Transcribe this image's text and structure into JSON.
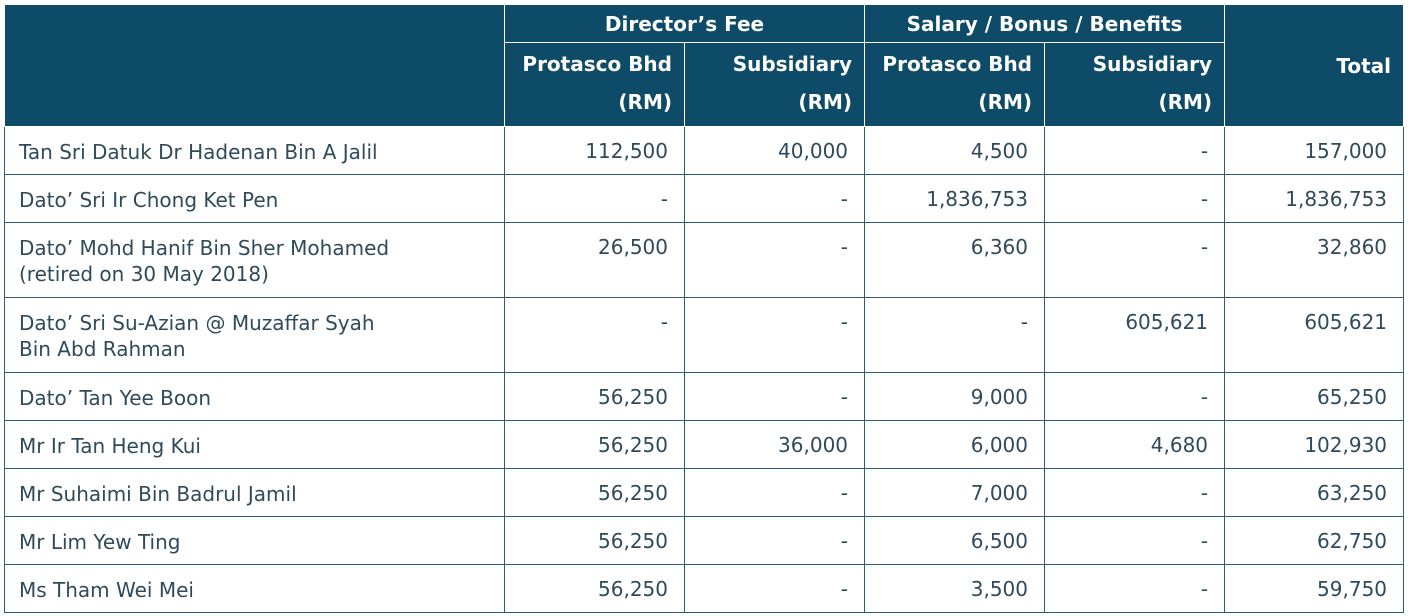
{
  "header": {
    "groups": [
      "Director’s Fee",
      "Salary / Bonus / Benefits"
    ],
    "subcolumns": [
      {
        "line1": "Protasco Bhd",
        "line2": "(RM)"
      },
      {
        "line1": "Subsidiary",
        "line2": "(RM)"
      },
      {
        "line1": "Protasco Bhd",
        "line2": "(RM)"
      },
      {
        "line1": "Subsidiary",
        "line2": "(RM)"
      }
    ],
    "total": "Total"
  },
  "rows": [
    {
      "name": [
        "Tan Sri Datuk Dr Hadenan Bin A Jalil",
        ""
      ],
      "v": [
        "112,500",
        "40,000",
        "4,500",
        "-",
        "157,000"
      ]
    },
    {
      "name": [
        "Dato’ Sri Ir Chong Ket Pen",
        ""
      ],
      "v": [
        "-",
        "-",
        "1,836,753",
        "-",
        "1,836,753"
      ]
    },
    {
      "name": [
        "Dato’ Mohd Hanif Bin Sher Mohamed",
        "(retired on 30 May 2018)"
      ],
      "v": [
        "26,500",
        "-",
        "6,360",
        "-",
        "32,860"
      ]
    },
    {
      "name": [
        "Dato’ Sri Su-Azian @ Muzaffar Syah",
        "Bin Abd Rahman"
      ],
      "v": [
        "-",
        "-",
        "-",
        "605,621",
        "605,621"
      ]
    },
    {
      "name": [
        "Dato’ Tan Yee Boon",
        ""
      ],
      "v": [
        "56,250",
        "-",
        "9,000",
        "-",
        "65,250"
      ]
    },
    {
      "name": [
        "Mr Ir Tan Heng Kui",
        ""
      ],
      "v": [
        "56,250",
        "36,000",
        "6,000",
        "4,680",
        "102,930"
      ]
    },
    {
      "name": [
        "Mr Suhaimi Bin Badrul Jamil",
        ""
      ],
      "v": [
        "56,250",
        "-",
        "7,000",
        "-",
        "63,250"
      ]
    },
    {
      "name": [
        "Mr Lim Yew Ting",
        ""
      ],
      "v": [
        "56,250",
        "-",
        "6,500",
        "-",
        "62,750"
      ]
    },
    {
      "name": [
        "Ms Tham Wei Mei",
        ""
      ],
      "v": [
        "56,250",
        "-",
        "3,500",
        "-",
        "59,750"
      ]
    }
  ],
  "colors": {
    "header_bg": "#0d4b68",
    "border": "#2f5b73",
    "text": "#2f4a5a"
  }
}
